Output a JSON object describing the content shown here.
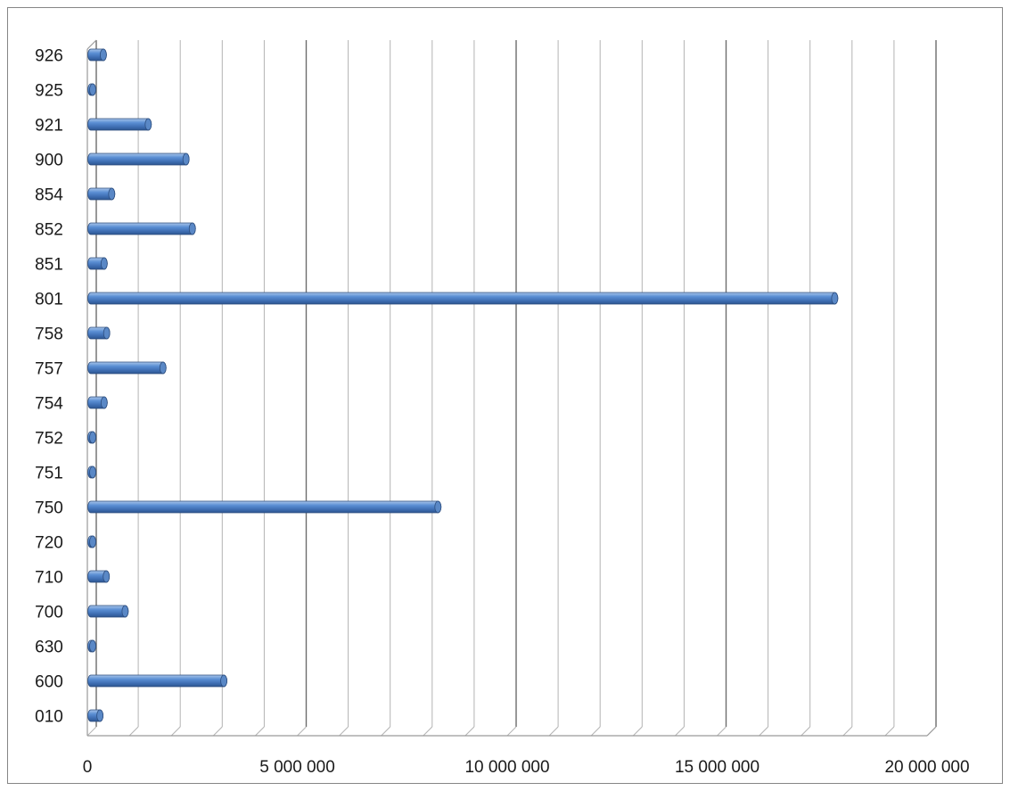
{
  "chart_data": {
    "type": "bar",
    "orientation": "horizontal",
    "title": "",
    "xlabel": "",
    "ylabel": "",
    "categories": [
      "010",
      "600",
      "630",
      "700",
      "710",
      "720",
      "750",
      "751",
      "752",
      "754",
      "757",
      "758",
      "801",
      "851",
      "852",
      "854",
      "900",
      "921",
      "925",
      "926"
    ],
    "values": [
      300000,
      3250000,
      90000,
      900000,
      450000,
      60000,
      8350000,
      60000,
      60000,
      400000,
      1800000,
      460000,
      17800000,
      400000,
      2500000,
      580000,
      2350000,
      1450000,
      50000,
      380000
    ],
    "xlim": [
      0,
      20000000
    ],
    "x_ticks": [
      "0",
      "5 000 000",
      "10 000 000",
      "15 000 000",
      "20 000 000"
    ],
    "grid": true,
    "legend": "none",
    "bar_color": "#4f81bd"
  }
}
